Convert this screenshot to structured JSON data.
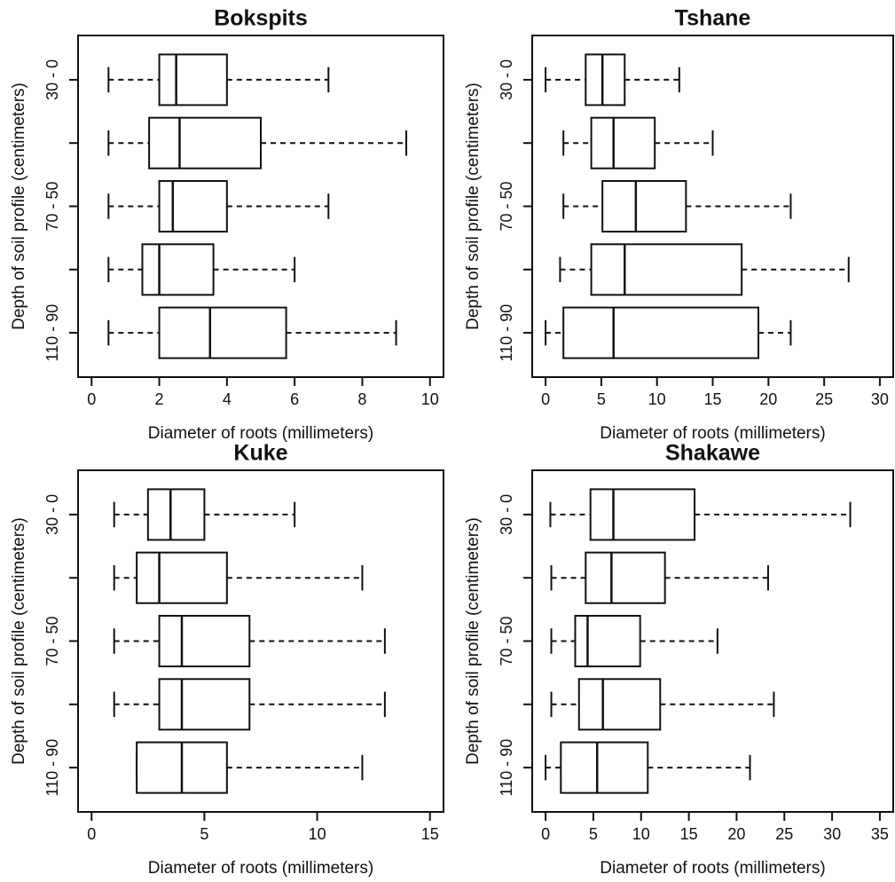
{
  "chart_data": [
    {
      "type": "box",
      "title": "Bokspits",
      "xlabel": "Diameter of roots (millimeters)",
      "ylabel": "Depth of soil profile (centimeters)",
      "categories": [
        "30 - 0",
        null,
        "70 - 50",
        null,
        "110 - 90"
      ],
      "boxes": [
        {
          "min": 0.5,
          "q1": 2.0,
          "median": 2.5,
          "q3": 4.0,
          "max": 7.0
        },
        {
          "min": 0.5,
          "q1": 1.7,
          "median": 2.6,
          "q3": 5.0,
          "max": 9.3
        },
        {
          "min": 0.5,
          "q1": 2.0,
          "median": 2.4,
          "q3": 4.0,
          "max": 7.0
        },
        {
          "min": 0.5,
          "q1": 1.5,
          "median": 2.0,
          "q3": 3.6,
          "max": 6.0
        },
        {
          "min": 0.5,
          "q1": 2.0,
          "median": 3.5,
          "q3": 5.75,
          "max": 9.0
        }
      ],
      "xlim": [
        -0.4,
        10.4
      ],
      "xticks": [
        0,
        2,
        4,
        6,
        8,
        10
      ]
    },
    {
      "type": "box",
      "title": "Tshane",
      "xlabel": "Diameter of roots (millimeters)",
      "ylabel": "Depth of soil profile (centimeters)",
      "categories": [
        "30 - 0",
        null,
        "70 - 50",
        null,
        "110 - 90"
      ],
      "boxes": [
        {
          "min": 0,
          "q1": 3.6,
          "median": 5.1,
          "q3": 7.1,
          "max": 12
        },
        {
          "min": 1.6,
          "q1": 4.1,
          "median": 6.1,
          "q3": 9.8,
          "max": 15
        },
        {
          "min": 1.6,
          "q1": 5.1,
          "median": 8.1,
          "q3": 12.6,
          "max": 22
        },
        {
          "min": 1.3,
          "q1": 4.1,
          "median": 7.1,
          "q3": 17.6,
          "max": 27.2
        },
        {
          "min": 0,
          "q1": 1.6,
          "median": 6.1,
          "q3": 19.1,
          "max": 22
        }
      ],
      "xlim": [
        -1.2,
        31.2
      ],
      "xticks": [
        0,
        5,
        10,
        15,
        20,
        25,
        30
      ]
    },
    {
      "type": "box",
      "title": "Kuke",
      "xlabel": "Diameter of roots (millimeters)",
      "ylabel": "Depth of soil profile (centimeters)",
      "categories": [
        "30 - 0",
        null,
        "70 - 50",
        null,
        "110 - 90"
      ],
      "boxes": [
        {
          "min": 1,
          "q1": 2.5,
          "median": 3.5,
          "q3": 5,
          "max": 9
        },
        {
          "min": 1,
          "q1": 2,
          "median": 3,
          "q3": 6,
          "max": 12
        },
        {
          "min": 1,
          "q1": 3,
          "median": 4,
          "q3": 7,
          "max": 13
        },
        {
          "min": 1,
          "q1": 3,
          "median": 4,
          "q3": 7,
          "max": 13
        },
        {
          "min": 2,
          "q1": 2,
          "median": 4,
          "q3": 6,
          "max": 12
        }
      ],
      "xlim": [
        -0.6,
        15.6
      ],
      "xticks": [
        0,
        5,
        10,
        15
      ]
    },
    {
      "type": "box",
      "title": "Shakawe",
      "xlabel": "Diameter of roots (millimeters)",
      "ylabel": "Depth of soil profile (centimeters)",
      "categories": [
        "30 - 0",
        null,
        "70 - 50",
        null,
        "110 - 90"
      ],
      "boxes": [
        {
          "min": 0.5,
          "q1": 4.7,
          "median": 7.1,
          "q3": 15.6,
          "max": 31.9
        },
        {
          "min": 0.6,
          "q1": 4.2,
          "median": 6.9,
          "q3": 12.5,
          "max": 23.3
        },
        {
          "min": 0.6,
          "q1": 3.1,
          "median": 4.4,
          "q3": 9.9,
          "max": 18
        },
        {
          "min": 0.6,
          "q1": 3.5,
          "median": 6.0,
          "q3": 12.0,
          "max": 23.9
        },
        {
          "min": 0,
          "q1": 1.6,
          "median": 5.4,
          "q3": 10.7,
          "max": 21.4
        }
      ],
      "xlim": [
        -1.4,
        36.4
      ],
      "xticks": [
        0,
        5,
        10,
        15,
        20,
        25,
        30,
        35
      ]
    }
  ]
}
